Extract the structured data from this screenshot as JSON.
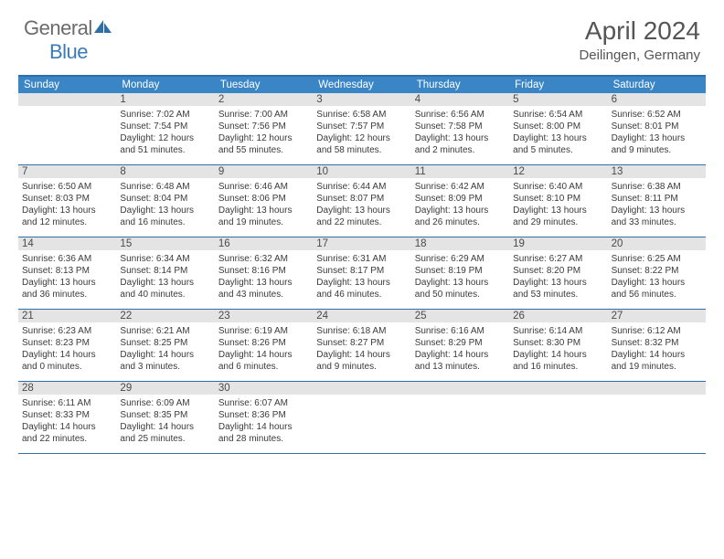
{
  "logo": {
    "text1": "General",
    "text2": "Blue"
  },
  "title": "April 2024",
  "location": "Deilingen, Germany",
  "colors": {
    "header_bar": "#3a85c6",
    "border": "#2f6fa8",
    "daynum_bg": "#e4e4e4",
    "logo_gray": "#6b6b6b",
    "logo_blue": "#3a7ab8",
    "text": "#3a3a3a"
  },
  "weekdays": [
    "Sunday",
    "Monday",
    "Tuesday",
    "Wednesday",
    "Thursday",
    "Friday",
    "Saturday"
  ],
  "weeks": [
    [
      {},
      {
        "n": "1",
        "sr": "Sunrise: 7:02 AM",
        "ss": "Sunset: 7:54 PM",
        "d1": "Daylight: 12 hours",
        "d2": "and 51 minutes."
      },
      {
        "n": "2",
        "sr": "Sunrise: 7:00 AM",
        "ss": "Sunset: 7:56 PM",
        "d1": "Daylight: 12 hours",
        "d2": "and 55 minutes."
      },
      {
        "n": "3",
        "sr": "Sunrise: 6:58 AM",
        "ss": "Sunset: 7:57 PM",
        "d1": "Daylight: 12 hours",
        "d2": "and 58 minutes."
      },
      {
        "n": "4",
        "sr": "Sunrise: 6:56 AM",
        "ss": "Sunset: 7:58 PM",
        "d1": "Daylight: 13 hours",
        "d2": "and 2 minutes."
      },
      {
        "n": "5",
        "sr": "Sunrise: 6:54 AM",
        "ss": "Sunset: 8:00 PM",
        "d1": "Daylight: 13 hours",
        "d2": "and 5 minutes."
      },
      {
        "n": "6",
        "sr": "Sunrise: 6:52 AM",
        "ss": "Sunset: 8:01 PM",
        "d1": "Daylight: 13 hours",
        "d2": "and 9 minutes."
      }
    ],
    [
      {
        "n": "7",
        "sr": "Sunrise: 6:50 AM",
        "ss": "Sunset: 8:03 PM",
        "d1": "Daylight: 13 hours",
        "d2": "and 12 minutes."
      },
      {
        "n": "8",
        "sr": "Sunrise: 6:48 AM",
        "ss": "Sunset: 8:04 PM",
        "d1": "Daylight: 13 hours",
        "d2": "and 16 minutes."
      },
      {
        "n": "9",
        "sr": "Sunrise: 6:46 AM",
        "ss": "Sunset: 8:06 PM",
        "d1": "Daylight: 13 hours",
        "d2": "and 19 minutes."
      },
      {
        "n": "10",
        "sr": "Sunrise: 6:44 AM",
        "ss": "Sunset: 8:07 PM",
        "d1": "Daylight: 13 hours",
        "d2": "and 22 minutes."
      },
      {
        "n": "11",
        "sr": "Sunrise: 6:42 AM",
        "ss": "Sunset: 8:09 PM",
        "d1": "Daylight: 13 hours",
        "d2": "and 26 minutes."
      },
      {
        "n": "12",
        "sr": "Sunrise: 6:40 AM",
        "ss": "Sunset: 8:10 PM",
        "d1": "Daylight: 13 hours",
        "d2": "and 29 minutes."
      },
      {
        "n": "13",
        "sr": "Sunrise: 6:38 AM",
        "ss": "Sunset: 8:11 PM",
        "d1": "Daylight: 13 hours",
        "d2": "and 33 minutes."
      }
    ],
    [
      {
        "n": "14",
        "sr": "Sunrise: 6:36 AM",
        "ss": "Sunset: 8:13 PM",
        "d1": "Daylight: 13 hours",
        "d2": "and 36 minutes."
      },
      {
        "n": "15",
        "sr": "Sunrise: 6:34 AM",
        "ss": "Sunset: 8:14 PM",
        "d1": "Daylight: 13 hours",
        "d2": "and 40 minutes."
      },
      {
        "n": "16",
        "sr": "Sunrise: 6:32 AM",
        "ss": "Sunset: 8:16 PM",
        "d1": "Daylight: 13 hours",
        "d2": "and 43 minutes."
      },
      {
        "n": "17",
        "sr": "Sunrise: 6:31 AM",
        "ss": "Sunset: 8:17 PM",
        "d1": "Daylight: 13 hours",
        "d2": "and 46 minutes."
      },
      {
        "n": "18",
        "sr": "Sunrise: 6:29 AM",
        "ss": "Sunset: 8:19 PM",
        "d1": "Daylight: 13 hours",
        "d2": "and 50 minutes."
      },
      {
        "n": "19",
        "sr": "Sunrise: 6:27 AM",
        "ss": "Sunset: 8:20 PM",
        "d1": "Daylight: 13 hours",
        "d2": "and 53 minutes."
      },
      {
        "n": "20",
        "sr": "Sunrise: 6:25 AM",
        "ss": "Sunset: 8:22 PM",
        "d1": "Daylight: 13 hours",
        "d2": "and 56 minutes."
      }
    ],
    [
      {
        "n": "21",
        "sr": "Sunrise: 6:23 AM",
        "ss": "Sunset: 8:23 PM",
        "d1": "Daylight: 14 hours",
        "d2": "and 0 minutes."
      },
      {
        "n": "22",
        "sr": "Sunrise: 6:21 AM",
        "ss": "Sunset: 8:25 PM",
        "d1": "Daylight: 14 hours",
        "d2": "and 3 minutes."
      },
      {
        "n": "23",
        "sr": "Sunrise: 6:19 AM",
        "ss": "Sunset: 8:26 PM",
        "d1": "Daylight: 14 hours",
        "d2": "and 6 minutes."
      },
      {
        "n": "24",
        "sr": "Sunrise: 6:18 AM",
        "ss": "Sunset: 8:27 PM",
        "d1": "Daylight: 14 hours",
        "d2": "and 9 minutes."
      },
      {
        "n": "25",
        "sr": "Sunrise: 6:16 AM",
        "ss": "Sunset: 8:29 PM",
        "d1": "Daylight: 14 hours",
        "d2": "and 13 minutes."
      },
      {
        "n": "26",
        "sr": "Sunrise: 6:14 AM",
        "ss": "Sunset: 8:30 PM",
        "d1": "Daylight: 14 hours",
        "d2": "and 16 minutes."
      },
      {
        "n": "27",
        "sr": "Sunrise: 6:12 AM",
        "ss": "Sunset: 8:32 PM",
        "d1": "Daylight: 14 hours",
        "d2": "and 19 minutes."
      }
    ],
    [
      {
        "n": "28",
        "sr": "Sunrise: 6:11 AM",
        "ss": "Sunset: 8:33 PM",
        "d1": "Daylight: 14 hours",
        "d2": "and 22 minutes."
      },
      {
        "n": "29",
        "sr": "Sunrise: 6:09 AM",
        "ss": "Sunset: 8:35 PM",
        "d1": "Daylight: 14 hours",
        "d2": "and 25 minutes."
      },
      {
        "n": "30",
        "sr": "Sunrise: 6:07 AM",
        "ss": "Sunset: 8:36 PM",
        "d1": "Daylight: 14 hours",
        "d2": "and 28 minutes."
      },
      {},
      {},
      {},
      {}
    ]
  ]
}
